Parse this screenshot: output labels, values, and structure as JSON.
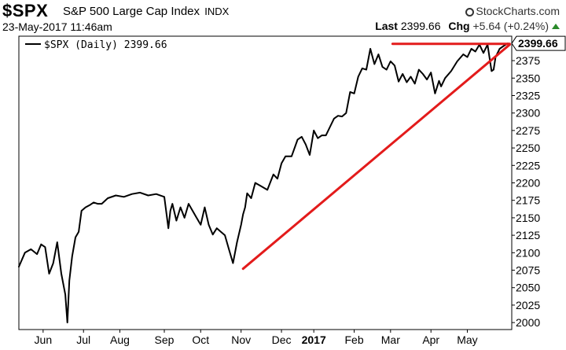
{
  "header": {
    "ticker": "$SPX",
    "index_name": "S&P 500 Large Cap Index",
    "exchange": "INDX",
    "date_time": "23-May-2017 11:46am",
    "brand": "StockCharts.com",
    "last_label": "Last",
    "last_value": "2399.66",
    "chg_label": "Chg",
    "chg_value": "+5.64 (+0.24%)"
  },
  "legend": {
    "text": "$SPX (Daily) 2399.66"
  },
  "colors": {
    "price_line": "#000000",
    "trendline": "#e31b1b",
    "up": "#2a8a2a"
  },
  "chart_data": {
    "type": "line",
    "ylim": [
      1990,
      2410
    ],
    "yticks": [
      2000,
      2025,
      2050,
      2075,
      2100,
      2125,
      2150,
      2175,
      2200,
      2225,
      2250,
      2275,
      2300,
      2325,
      2350,
      2375
    ],
    "xticks": [
      {
        "label": "Jun",
        "x": 0.6
      },
      {
        "label": "Jul",
        "x": 1.6
      },
      {
        "label": "Aug",
        "x": 2.5
      },
      {
        "label": "Sep",
        "x": 3.6
      },
      {
        "label": "Oct",
        "x": 4.5
      },
      {
        "label": "Nov",
        "x": 5.5
      },
      {
        "label": "Dec",
        "x": 6.5
      },
      {
        "label": "2017",
        "x": 7.3,
        "bold": true
      },
      {
        "label": "Feb",
        "x": 8.3
      },
      {
        "label": "Mar",
        "x": 9.2
      },
      {
        "label": "Apr",
        "x": 10.2
      },
      {
        "label": "May",
        "x": 11.1
      }
    ],
    "xlim": [
      0,
      12.2
    ],
    "last_price": 2399.66,
    "series": [
      {
        "name": "$SPX (Daily) 2399.66",
        "x": [
          0,
          0.15,
          0.3,
          0.45,
          0.55,
          0.65,
          0.75,
          0.85,
          0.95,
          1.05,
          1.15,
          1.2,
          1.25,
          1.32,
          1.4,
          1.48,
          1.55,
          1.65,
          1.75,
          1.85,
          1.95,
          2.05,
          2.2,
          2.4,
          2.6,
          2.8,
          3.0,
          3.2,
          3.4,
          3.6,
          3.7,
          3.75,
          3.8,
          3.9,
          4.0,
          4.1,
          4.2,
          4.3,
          4.4,
          4.5,
          4.6,
          4.7,
          4.8,
          4.9,
          5.0,
          5.1,
          5.2,
          5.3,
          5.4,
          5.5,
          5.55,
          5.6,
          5.65,
          5.75,
          5.85,
          6.0,
          6.15,
          6.3,
          6.4,
          6.5,
          6.6,
          6.75,
          6.9,
          7.0,
          7.1,
          7.2,
          7.3,
          7.4,
          7.5,
          7.6,
          7.7,
          7.8,
          7.9,
          8.0,
          8.1,
          8.2,
          8.3,
          8.4,
          8.5,
          8.6,
          8.7,
          8.8,
          8.9,
          9.0,
          9.1,
          9.2,
          9.3,
          9.4,
          9.5,
          9.6,
          9.7,
          9.8,
          9.9,
          10.0,
          10.1,
          10.2,
          10.3,
          10.4,
          10.45,
          10.55,
          10.7,
          10.85,
          11.0,
          11.1,
          11.2,
          11.3,
          11.4,
          11.5,
          11.6,
          11.7,
          11.75,
          11.8,
          11.9,
          12.0,
          12.1
        ],
        "values": [
          2080,
          2100,
          2105,
          2098,
          2112,
          2108,
          2070,
          2085,
          2115,
          2070,
          2040,
          2000,
          2060,
          2095,
          2122,
          2130,
          2160,
          2165,
          2168,
          2172,
          2170,
          2170,
          2178,
          2182,
          2180,
          2184,
          2186,
          2182,
          2184,
          2180,
          2135,
          2160,
          2170,
          2146,
          2165,
          2150,
          2170,
          2160,
          2150,
          2140,
          2165,
          2140,
          2126,
          2135,
          2130,
          2125,
          2105,
          2085,
          2115,
          2140,
          2155,
          2165,
          2185,
          2178,
          2200,
          2195,
          2190,
          2212,
          2206,
          2228,
          2238,
          2238,
          2262,
          2266,
          2255,
          2240,
          2275,
          2264,
          2268,
          2268,
          2280,
          2292,
          2296,
          2295,
          2300,
          2330,
          2328,
          2352,
          2364,
          2362,
          2392,
          2370,
          2384,
          2366,
          2362,
          2374,
          2368,
          2345,
          2356,
          2344,
          2352,
          2342,
          2362,
          2356,
          2348,
          2358,
          2328,
          2346,
          2338,
          2350,
          2360,
          2374,
          2384,
          2380,
          2392,
          2388,
          2398,
          2386,
          2398,
          2360,
          2362,
          2380,
          2392,
          2396,
          2399.66
        ]
      },
      {
        "name": "",
        "x": [
          5.55,
          12.15
        ],
        "values": [
          2077,
          2398
        ]
      },
      {
        "name": "",
        "x": [
          9.25,
          12.15
        ],
        "values": [
          2399,
          2399
        ]
      }
    ]
  }
}
